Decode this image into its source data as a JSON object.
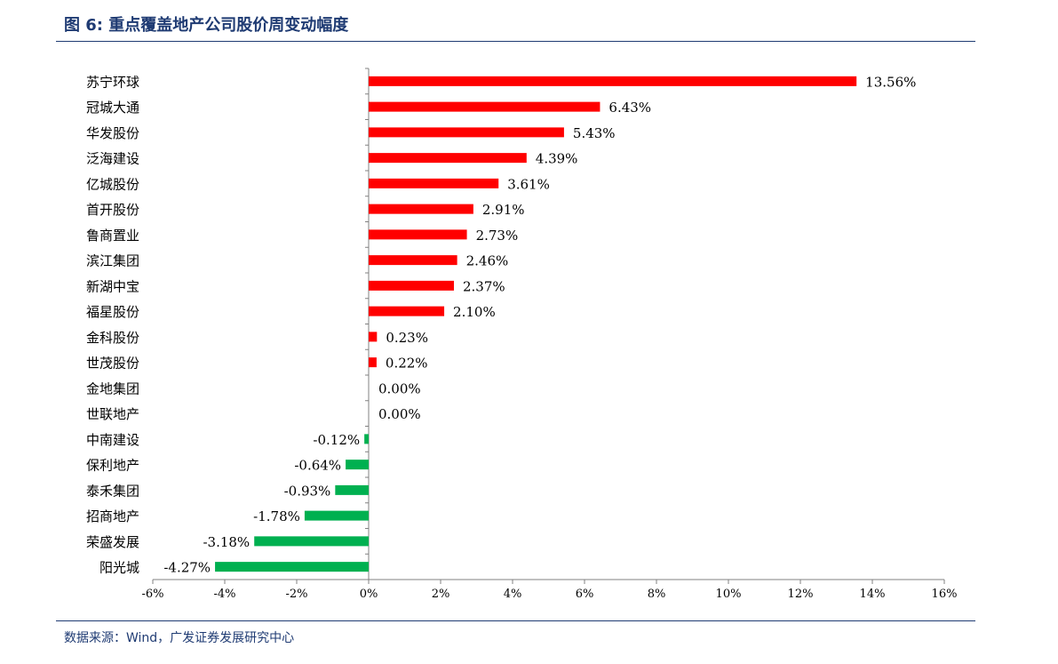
{
  "header": {
    "title": "图 6:  重点覆盖地产公司股价周变动幅度"
  },
  "footer": {
    "source": "数据来源：Wind，广发证券发展研究中心"
  },
  "colors": {
    "positive": "#ff0000",
    "negative": "#00b050",
    "title": "#1f3b73",
    "axis": "#808080"
  },
  "chart_data": {
    "type": "bar",
    "orientation": "horizontal",
    "categories": [
      "苏宁环球",
      "冠城大通",
      "华发股份",
      "泛海建设",
      "亿城股份",
      "首开股份",
      "鲁商置业",
      "滨江集团",
      "新湖中宝",
      "福星股份",
      "金科股份",
      "世茂股份",
      "金地集团",
      "世联地产",
      "中南建设",
      "保利地产",
      "泰禾集团",
      "招商地产",
      "荣盛发展",
      "阳光城"
    ],
    "values": [
      13.56,
      6.43,
      5.43,
      4.39,
      3.61,
      2.91,
      2.73,
      2.46,
      2.37,
      2.1,
      0.23,
      0.22,
      0.0,
      0.0,
      -0.12,
      -0.64,
      -0.93,
      -1.78,
      -3.18,
      -4.27
    ],
    "value_labels": [
      "13.56%",
      "6.43%",
      "5.43%",
      "4.39%",
      "3.61%",
      "2.91%",
      "2.73%",
      "2.46%",
      "2.37%",
      "2.10%",
      "0.23%",
      "0.22%",
      "0.00%",
      "0.00%",
      "-0.12%",
      "-0.64%",
      "-0.93%",
      "-1.78%",
      "-3.18%",
      "-4.27%"
    ],
    "xlim": [
      -6,
      16
    ],
    "x_ticks": [
      -6,
      -4,
      -2,
      0,
      2,
      4,
      6,
      8,
      10,
      12,
      14,
      16
    ],
    "x_tick_labels": [
      "-6%",
      "-4%",
      "-2%",
      "0%",
      "2%",
      "4%",
      "6%",
      "8%",
      "10%",
      "12%",
      "14%",
      "16%"
    ],
    "grid": false,
    "legend": "none"
  }
}
